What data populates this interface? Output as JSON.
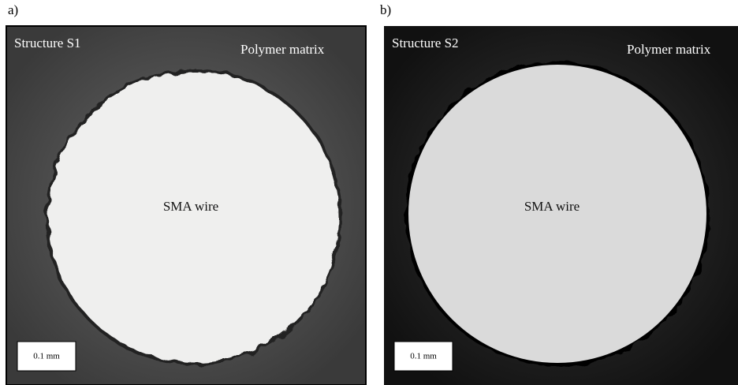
{
  "panels": [
    {
      "label": "a)",
      "title": "Structure S1",
      "matrix_label": "Polymer matrix",
      "wire_label": "SMA wire",
      "scale_label": "0.1 mm"
    },
    {
      "label": "b)",
      "title": "Structure S2",
      "matrix_label": "Polymer matrix",
      "wire_label": "SMA wire",
      "scale_label": "0.1 mm"
    }
  ]
}
